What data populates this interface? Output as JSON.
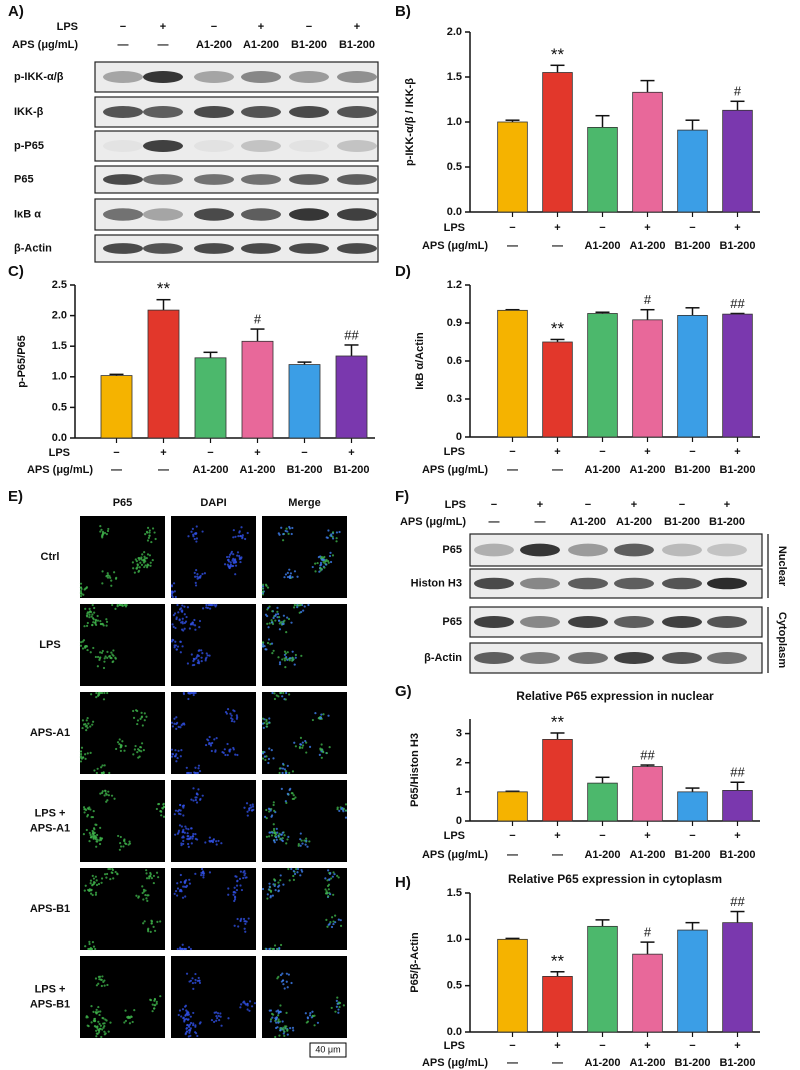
{
  "blot_a": {
    "label": "A)",
    "conditions": [
      {
        "name": "LPS",
        "values": [
          "−",
          "+",
          "−",
          "+",
          "−",
          "+"
        ]
      },
      {
        "name": "APS (μg/mL)",
        "values": [
          "—",
          "—",
          "A1-200",
          "A1-200",
          "B1-200",
          "B1-200"
        ]
      }
    ],
    "rows": [
      "p-IKK-α/β",
      "IKK-β",
      "p-P65",
      "P65",
      "IκB α",
      "β-Actin"
    ]
  },
  "panel_e": {
    "label": "E)",
    "columns": [
      "P65",
      "DAPI",
      "Merge"
    ],
    "rows": [
      [
        "Ctrl"
      ],
      [
        "LPS"
      ],
      [
        "APS-A1"
      ],
      [
        "LPS +",
        "APS-A1"
      ],
      [
        "APS-B1"
      ],
      [
        "LPS +",
        "APS-B1"
      ]
    ],
    "scale_bar": "40 μm"
  },
  "blot_f": {
    "label": "F)",
    "conditions": [
      {
        "name": "LPS",
        "values": [
          "−",
          "+",
          "−",
          "+",
          "−",
          "+"
        ]
      },
      {
        "name": "APS (μg/mL)",
        "values": [
          "—",
          "—",
          "A1-200",
          "A1-200",
          "B1-200",
          "B1-200"
        ]
      }
    ],
    "rows": [
      "P65",
      "Histon H3",
      "P65",
      "β-Actin"
    ],
    "fractions": [
      "Nuclear",
      "Cytoplasm"
    ]
  },
  "chart_data": [
    {
      "type": "bar",
      "label": "B)",
      "y_label": "p-IKK-α/β / IKK-β",
      "conditions": [
        {
          "name": "LPS",
          "values": [
            "−",
            "+",
            "−",
            "+",
            "−",
            "+"
          ]
        },
        {
          "name": "APS (μg/mL)",
          "values": [
            "—",
            "—",
            "A1-200",
            "A1-200",
            "B1-200",
            "B1-200"
          ]
        }
      ],
      "values": [
        1.0,
        1.55,
        0.94,
        1.33,
        0.91,
        1.13
      ],
      "errors": [
        0.02,
        0.08,
        0.13,
        0.13,
        0.11,
        0.1
      ],
      "annotations": [
        null,
        "**",
        null,
        null,
        null,
        "#"
      ],
      "colors": [
        "#f5b300",
        "#e2372b",
        "#4cb86c",
        "#e8689a",
        "#3b9ee6",
        "#7a38ae"
      ],
      "ylim": [
        0,
        2.0
      ],
      "yticks": [
        {
          "value": 0,
          "label": "0.0"
        },
        {
          "value": 0.5,
          "label": "0.5"
        },
        {
          "value": 1,
          "label": "1.0"
        },
        {
          "value": 1.5,
          "label": "1.5"
        },
        {
          "value": 2,
          "label": "2.0"
        }
      ]
    },
    {
      "type": "bar",
      "label": "C)",
      "y_label": "p-P65/P65",
      "conditions": [
        {
          "name": "LPS",
          "values": [
            "−",
            "+",
            "−",
            "+",
            "−",
            "+"
          ]
        },
        {
          "name": "APS (μg/mL)",
          "values": [
            "—",
            "—",
            "A1-200",
            "A1-200",
            "B1-200",
            "B1-200"
          ]
        }
      ],
      "values": [
        1.02,
        2.09,
        1.31,
        1.58,
        1.2,
        1.34
      ],
      "errors": [
        0.02,
        0.17,
        0.09,
        0.2,
        0.04,
        0.18
      ],
      "annotations": [
        null,
        "**",
        null,
        "#",
        null,
        "##"
      ],
      "colors": [
        "#f5b300",
        "#e2372b",
        "#4cb86c",
        "#e8689a",
        "#3b9ee6",
        "#7a38ae"
      ],
      "ylim": [
        0,
        2.5
      ],
      "yticks": [
        {
          "value": 0,
          "label": "0.0"
        },
        {
          "value": 0.5,
          "label": "0.5"
        },
        {
          "value": 1,
          "label": "1.0"
        },
        {
          "value": 1.5,
          "label": "1.5"
        },
        {
          "value": 2,
          "label": "2.0"
        },
        {
          "value": 2.5,
          "label": "2.5"
        }
      ]
    },
    {
      "type": "bar",
      "label": "D)",
      "y_label": "IκB α/Actin",
      "conditions": [
        {
          "name": "LPS",
          "values": [
            "−",
            "+",
            "−",
            "+",
            "−",
            "+"
          ]
        },
        {
          "name": "APS (μg/mL)",
          "values": [
            "—",
            "—",
            "A1-200",
            "A1-200",
            "B1-200",
            "B1-200"
          ]
        }
      ],
      "values": [
        1.0,
        0.75,
        0.975,
        0.925,
        0.96,
        0.97
      ],
      "errors": [
        0.005,
        0.02,
        0.01,
        0.08,
        0.06,
        0.005
      ],
      "annotations": [
        null,
        "**",
        null,
        "#",
        null,
        "##"
      ],
      "colors": [
        "#f5b300",
        "#e2372b",
        "#4cb86c",
        "#e8689a",
        "#3b9ee6",
        "#7a38ae"
      ],
      "ylim": [
        0,
        1.2
      ],
      "yticks": [
        0,
        0.3,
        0.6,
        0.9,
        1.2
      ]
    },
    {
      "type": "bar",
      "label": "G)",
      "title": "Relative P65 expression in nuclear",
      "y_label": "P65/Histon H3",
      "conditions": [
        {
          "name": "LPS",
          "values": [
            "−",
            "+",
            "−",
            "+",
            "−",
            "+"
          ]
        },
        {
          "name": "APS (μg/mL)",
          "values": [
            "—",
            "—",
            "A1-200",
            "A1-200",
            "B1-200",
            "B1-200"
          ]
        }
      ],
      "values": [
        1.0,
        2.8,
        1.3,
        1.87,
        1.0,
        1.05
      ],
      "errors": [
        0.02,
        0.22,
        0.2,
        0.05,
        0.13,
        0.28
      ],
      "annotations": [
        null,
        "**",
        null,
        "##",
        null,
        "##"
      ],
      "colors": [
        "#f5b300",
        "#e2372b",
        "#4cb86c",
        "#e8689a",
        "#3b9ee6",
        "#7a38ae"
      ],
      "ylim": [
        0,
        3.5
      ],
      "yticks": [
        0,
        1,
        2,
        3
      ]
    },
    {
      "type": "bar",
      "label": "H)",
      "title": "Relative P65 expression in cytoplasm",
      "y_label": "P65/β-Actin",
      "conditions": [
        {
          "name": "LPS",
          "values": [
            "−",
            "+",
            "−",
            "+",
            "−",
            "+"
          ]
        },
        {
          "name": "APS (μg/mL)",
          "values": [
            "—",
            "—",
            "A1-200",
            "A1-200",
            "B1-200",
            "B1-200"
          ]
        }
      ],
      "values": [
        1.0,
        0.6,
        1.14,
        0.84,
        1.1,
        1.18
      ],
      "errors": [
        0.01,
        0.05,
        0.07,
        0.13,
        0.08,
        0.12
      ],
      "annotations": [
        null,
        "**",
        null,
        "#",
        null,
        "##"
      ],
      "colors": [
        "#f5b300",
        "#e2372b",
        "#4cb86c",
        "#e8689a",
        "#3b9ee6",
        "#7a38ae"
      ],
      "ylim": [
        0,
        1.5
      ],
      "yticks": [
        {
          "value": 0,
          "label": "0.0"
        },
        {
          "value": 0.5,
          "label": "0.5"
        },
        {
          "value": 1,
          "label": "1.0"
        },
        {
          "value": 1.5,
          "label": "1.5"
        }
      ]
    }
  ]
}
